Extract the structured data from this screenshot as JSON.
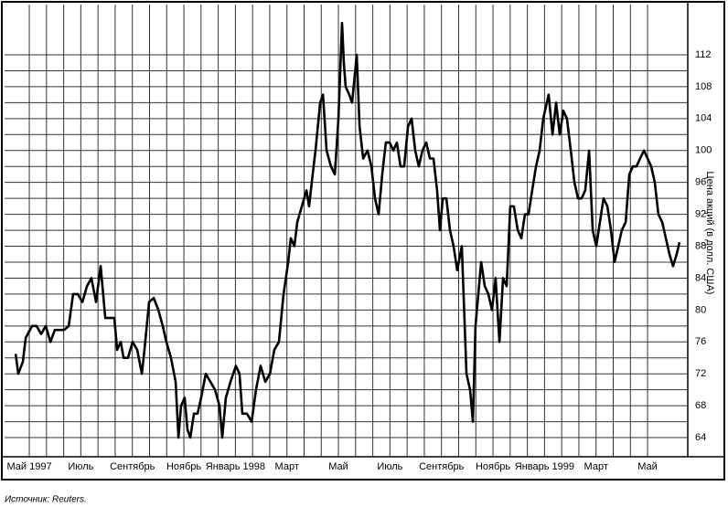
{
  "chart_data": {
    "type": "line",
    "y_label": "Цена акций (в долл. США)",
    "source": "Источник: Reuters.",
    "x": [
      -0.53,
      -0.43,
      -0.25,
      -0.14,
      0.11,
      0.28,
      0.46,
      0.64,
      0.82,
      0.99,
      1.17,
      1.35,
      1.53,
      1.7,
      1.88,
      2.06,
      2.24,
      2.41,
      2.59,
      2.77,
      2.95,
      3.12,
      3.3,
      3.41,
      3.55,
      3.66,
      3.83,
      4.01,
      4.19,
      4.37,
      4.47,
      4.65,
      4.83,
      5.01,
      5.18,
      5.32,
      5.5,
      5.68,
      5.79,
      5.89,
      6.03,
      6.14,
      6.25,
      6.39,
      6.53,
      6.67,
      6.85,
      7.03,
      7.21,
      7.38,
      7.49,
      7.63,
      7.81,
      8.02,
      8.16,
      8.27,
      8.45,
      8.63,
      8.8,
      8.98,
      9.16,
      9.34,
      9.51,
      9.69,
      9.87,
      10.05,
      10.15,
      10.29,
      10.4,
      10.58,
      10.76,
      10.86,
      11.0,
      11.11,
      11.29,
      11.4,
      11.54,
      11.71,
      11.86,
      12.0,
      12.14,
      12.21,
      12.28,
      12.42,
      12.53,
      12.71,
      12.82,
      12.96,
      13.13,
      13.28,
      13.42,
      13.56,
      13.7,
      13.84,
      13.99,
      14.13,
      14.27,
      14.41,
      14.55,
      14.7,
      14.84,
      14.98,
      15.12,
      15.26,
      15.41,
      15.55,
      15.69,
      15.83,
      15.94,
      16.05,
      16.19,
      16.33,
      16.47,
      16.61,
      16.79,
      16.97,
      17.11,
      17.22,
      17.32,
      17.43,
      17.54,
      17.68,
      17.82,
      17.96,
      18.1,
      18.25,
      18.39,
      18.53,
      18.67,
      18.81,
      18.96,
      19.1,
      19.24,
      19.38,
      19.52,
      19.67,
      19.81,
      19.95,
      20.09,
      20.16,
      20.31,
      20.45,
      20.59,
      20.73,
      20.87,
      21.02,
      21.16,
      21.3,
      21.44,
      21.58,
      21.73,
      21.87,
      22.01,
      22.15,
      22.29,
      22.44,
      22.58,
      22.72,
      22.86,
      23.0,
      23.15,
      23.29,
      23.43,
      23.57,
      23.71,
      23.86,
      24.0,
      24.14,
      24.28,
      24.42,
      24.57,
      24.71,
      24.85,
      24.99,
      25.13,
      25.24
    ],
    "series": [
      {
        "color": "#000000",
        "values": [
          74.5,
          72,
          73.5,
          76.5,
          78,
          78,
          77,
          78,
          76,
          77.5,
          77.5,
          77.5,
          78,
          82,
          82,
          81,
          83,
          84,
          81,
          85.5,
          79,
          79,
          79,
          75,
          76,
          74,
          74,
          76,
          75,
          72,
          75,
          81,
          81.5,
          80,
          78,
          76,
          74,
          71,
          64,
          68,
          69,
          65,
          64,
          67,
          67,
          69,
          72,
          71,
          70,
          68,
          64,
          69,
          71,
          73,
          72,
          67,
          67,
          66,
          70,
          73,
          71,
          72,
          75,
          76,
          82,
          86,
          89,
          88,
          91,
          93,
          95,
          93,
          97,
          100,
          106,
          107,
          100,
          98,
          97,
          104,
          116,
          111,
          108,
          107,
          106,
          112,
          103,
          99,
          100,
          98,
          94,
          92,
          97,
          101,
          101,
          100,
          101,
          98,
          98,
          103,
          104,
          100,
          98,
          100,
          101,
          99,
          99,
          95,
          90,
          94,
          94,
          90,
          88,
          85,
          88,
          72,
          70,
          66,
          78,
          82,
          86,
          83,
          82,
          80,
          84,
          76,
          84,
          83,
          93,
          93,
          90,
          89,
          92,
          92,
          95,
          98,
          100,
          104,
          106,
          107,
          102,
          106,
          102,
          105,
          104,
          100,
          96,
          94,
          94,
          95,
          100,
          90,
          88,
          91,
          94,
          93,
          90,
          86,
          88,
          90,
          91,
          97,
          98,
          98,
          99,
          100,
          99,
          98,
          96,
          92,
          91,
          89,
          87,
          85.5,
          87,
          88.5
        ]
      }
    ],
    "xlim": [
      -0.96,
      25.56
    ],
    "xticks": [
      {
        "value": 0,
        "label": "Май 1997"
      },
      {
        "value": 2,
        "label": "Июль"
      },
      {
        "value": 4,
        "label": "Сентябрь"
      },
      {
        "value": 6,
        "label": "Ноябрь"
      },
      {
        "value": 8,
        "label": "Январь 1998"
      },
      {
        "value": 10,
        "label": "Март"
      },
      {
        "value": 12,
        "label": "Май"
      },
      {
        "value": 14,
        "label": "Июль"
      },
      {
        "value": 16,
        "label": "Сентябрь"
      },
      {
        "value": 18,
        "label": "Ноябрь"
      },
      {
        "value": 20,
        "label": "Январь 1999"
      },
      {
        "value": 22,
        "label": "Март"
      },
      {
        "value": 24,
        "label": "Май"
      }
    ],
    "ylim": [
      61.6,
      118.3
    ],
    "yticks": [
      64,
      68,
      72,
      76,
      80,
      84,
      88,
      92,
      96,
      100,
      104,
      108,
      112
    ],
    "grid": true
  }
}
